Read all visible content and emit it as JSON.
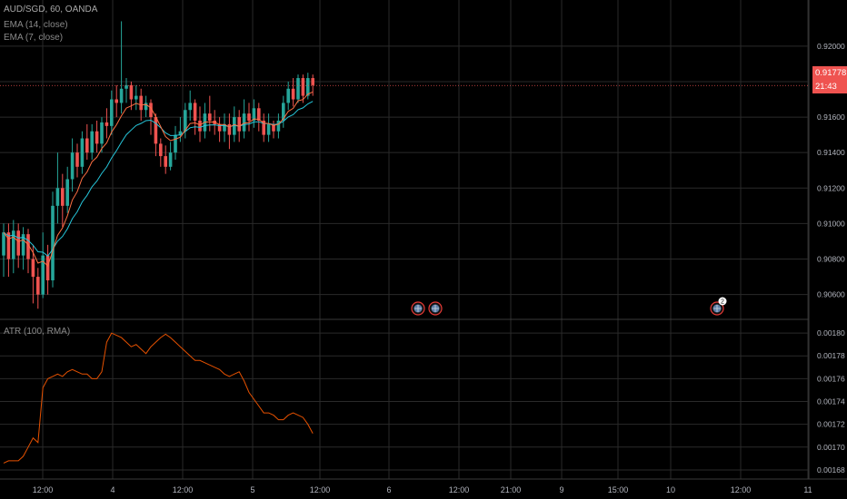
{
  "header": {
    "symbol_line": "AUD/SGD, 60, OANDA",
    "ema14_label": "EMA (14, close)",
    "ema7_label": "EMA (7, close)",
    "atr_label": "ATR (100, RMA)"
  },
  "price_tag": {
    "value": "0.91778",
    "countdown": "21:43"
  },
  "colors": {
    "up": "#26a69a",
    "down": "#ef5350",
    "ema14": "#26c6da",
    "ema7": "#ff7043",
    "atr": "#e65100",
    "grid": "#2a2a2a",
    "axis_text": "#b2b5be",
    "bg": "#000000"
  },
  "chart_data": [
    {
      "type": "candlestick",
      "title": "AUD/SGD, 60, OANDA",
      "ylim": [
        0.9046,
        0.9226
      ],
      "yticks": [
        "0.92000",
        "0.91800",
        "0.91600",
        "0.91400",
        "0.91200",
        "0.91000",
        "0.90800",
        "0.90600"
      ],
      "series": [
        {
          "name": "EMA (14, close)",
          "role": "ema14"
        },
        {
          "name": "EMA (7, close)",
          "role": "ema7"
        }
      ],
      "candles": [
        [
          0.9082,
          0.9095,
          0.91,
          0.907
        ],
        [
          0.9095,
          0.908,
          0.91,
          0.907
        ],
        [
          0.908,
          0.9096,
          0.9102,
          0.9072
        ],
        [
          0.9096,
          0.9082,
          0.91,
          0.9075
        ],
        [
          0.9082,
          0.9094,
          0.9098,
          0.9074
        ],
        [
          0.9094,
          0.908,
          0.9097,
          0.9072
        ],
        [
          0.908,
          0.907,
          0.9088,
          0.9055
        ],
        [
          0.907,
          0.906,
          0.9075,
          0.9052
        ],
        [
          0.906,
          0.9082,
          0.9095,
          0.9058
        ],
        [
          0.9082,
          0.9068,
          0.9088,
          0.906
        ],
        [
          0.9068,
          0.911,
          0.9118,
          0.9064
        ],
        [
          0.911,
          0.912,
          0.914,
          0.91
        ],
        [
          0.912,
          0.911,
          0.9128,
          0.9098
        ],
        [
          0.911,
          0.9125,
          0.9132,
          0.9106
        ],
        [
          0.9125,
          0.914,
          0.9148,
          0.9118
        ],
        [
          0.914,
          0.9132,
          0.9145,
          0.9126
        ],
        [
          0.9132,
          0.9148,
          0.9152,
          0.9128
        ],
        [
          0.9148,
          0.914,
          0.9156,
          0.9136
        ],
        [
          0.914,
          0.9152,
          0.9156,
          0.9136
        ],
        [
          0.9152,
          0.9145,
          0.9158,
          0.914
        ],
        [
          0.9145,
          0.9157,
          0.916,
          0.914
        ],
        [
          0.9157,
          0.9155,
          0.9165,
          0.9148
        ],
        [
          0.9155,
          0.917,
          0.9175,
          0.915
        ],
        [
          0.917,
          0.9168,
          0.9178,
          0.916
        ],
        [
          0.9168,
          0.9176,
          0.9214,
          0.9162
        ],
        [
          0.9176,
          0.9178,
          0.9182,
          0.9168
        ],
        [
          0.9178,
          0.917,
          0.918,
          0.9164
        ],
        [
          0.917,
          0.9172,
          0.9178,
          0.9164
        ],
        [
          0.9172,
          0.9164,
          0.9176,
          0.9158
        ],
        [
          0.9164,
          0.9168,
          0.9172,
          0.916
        ],
        [
          0.9168,
          0.916,
          0.917,
          0.915
        ],
        [
          0.916,
          0.9145,
          0.9162,
          0.9138
        ],
        [
          0.9145,
          0.9138,
          0.9148,
          0.9132
        ],
        [
          0.9138,
          0.9132,
          0.9144,
          0.9128
        ],
        [
          0.9132,
          0.914,
          0.9146,
          0.913
        ],
        [
          0.914,
          0.915,
          0.9155,
          0.9136
        ],
        [
          0.915,
          0.9152,
          0.916,
          0.9146
        ],
        [
          0.9152,
          0.9164,
          0.9168,
          0.9148
        ],
        [
          0.9164,
          0.9168,
          0.9175,
          0.9158
        ],
        [
          0.9168,
          0.9158,
          0.917,
          0.915
        ],
        [
          0.9158,
          0.9152,
          0.9166,
          0.9146
        ],
        [
          0.9152,
          0.9162,
          0.9168,
          0.9148
        ],
        [
          0.9162,
          0.9158,
          0.9172,
          0.9152
        ],
        [
          0.9158,
          0.9156,
          0.9164,
          0.915
        ],
        [
          0.9156,
          0.9152,
          0.916,
          0.9146
        ],
        [
          0.9152,
          0.9156,
          0.9162,
          0.9146
        ],
        [
          0.9156,
          0.915,
          0.9162,
          0.9142
        ],
        [
          0.915,
          0.916,
          0.9166,
          0.9146
        ],
        [
          0.916,
          0.9152,
          0.9164,
          0.9146
        ],
        [
          0.9152,
          0.9162,
          0.917,
          0.9148
        ],
        [
          0.9162,
          0.9158,
          0.9168,
          0.9152
        ],
        [
          0.9158,
          0.9165,
          0.917,
          0.9154
        ],
        [
          0.9165,
          0.9158,
          0.9168,
          0.9152
        ],
        [
          0.9158,
          0.915,
          0.9162,
          0.9146
        ],
        [
          0.915,
          0.9156,
          0.9162,
          0.9146
        ],
        [
          0.9156,
          0.9152,
          0.9158,
          0.9148
        ],
        [
          0.9152,
          0.9158,
          0.9162,
          0.9148
        ],
        [
          0.9158,
          0.9168,
          0.9172,
          0.9154
        ],
        [
          0.9168,
          0.9176,
          0.918,
          0.9164
        ],
        [
          0.9176,
          0.917,
          0.9182,
          0.9166
        ],
        [
          0.917,
          0.9182,
          0.9184,
          0.9168
        ],
        [
          0.9182,
          0.9172,
          0.9184,
          0.9168
        ],
        [
          0.9172,
          0.9182,
          0.9185,
          0.917
        ],
        [
          0.9182,
          0.9178,
          0.9184,
          0.9172
        ]
      ]
    },
    {
      "type": "line",
      "title": "ATR (100, RMA)",
      "ylim": [
        0.001672,
        0.001812
      ],
      "yticks": [
        "0.00180",
        "0.00178",
        "0.00176",
        "0.00174",
        "0.00172",
        "0.00170",
        "0.00168"
      ],
      "series": [
        {
          "name": "ATR (100, RMA)",
          "values": [
            0.001686,
            0.001688,
            0.001688,
            0.001688,
            0.001692,
            0.0017,
            0.001708,
            0.001704,
            0.001752,
            0.00176,
            0.001762,
            0.001764,
            0.001762,
            0.001766,
            0.001768,
            0.001766,
            0.001764,
            0.001764,
            0.00176,
            0.00176,
            0.001766,
            0.001792,
            0.0018,
            0.001798,
            0.001796,
            0.001792,
            0.001788,
            0.00179,
            0.001786,
            0.001782,
            0.001788,
            0.001792,
            0.001796,
            0.001799,
            0.001796,
            0.001792,
            0.001788,
            0.001784,
            0.00178,
            0.001776,
            0.001776,
            0.001774,
            0.001772,
            0.00177,
            0.001768,
            0.001764,
            0.001762,
            0.001764,
            0.001766,
            0.001758,
            0.001748,
            0.001742,
            0.001736,
            0.00173,
            0.00173,
            0.001728,
            0.001724,
            0.001724,
            0.001728,
            0.00173,
            0.001728,
            0.001726,
            0.00172,
            0.001712
          ]
        }
      ]
    }
  ],
  "time_axis": {
    "labels": [
      "12:00",
      "4",
      "12:00",
      "5",
      "12:00",
      "6",
      "12:00",
      "21:00",
      "9",
      "15:00",
      "10",
      "12:00",
      "11"
    ]
  },
  "markers": {
    "event_badge_count": "2"
  }
}
